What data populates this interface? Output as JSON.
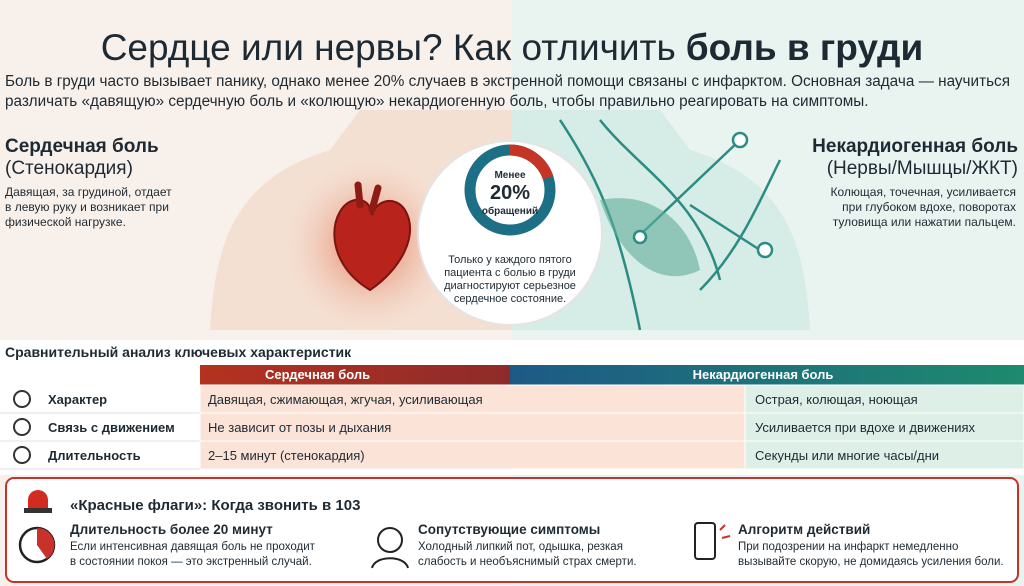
{
  "header": {
    "title_regular": "Сердце или нервы? Как отличить",
    "title_bold": "боль в груди",
    "intro": [
      "Боль в груди часто вызывает панику, однако менее 20% случаев в экстренной помощи связаны с инфарктом. Основная задача — научиться",
      "различать «давящую» сердечную боль и «колющую» некардиогенную боль, чтобы правильно реагировать на симптомы."
    ]
  },
  "left": {
    "title": "Сердечная боль",
    "subtitle": "(Стенокардия)",
    "description": [
      "Давящая, за грудиной, отдает",
      "в левую руку и возникает при",
      "физической нагрузке."
    ]
  },
  "right": {
    "title": "Некардиогенная боль",
    "subtitle": "(Нервы/Мышцы/ЖКТ)",
    "description": [
      "Колющая, точечная, усиливается",
      "при глубоком вдохе, поворотах",
      "туловища или нажатии пальцем."
    ]
  },
  "center": {
    "donut": {
      "top": "Менее",
      "value": 20,
      "label": "20%",
      "bottom": "обращений"
    },
    "caption": [
      "Только у каждого пятого",
      "пациента с болью в груди",
      "диагностируют серьезное",
      "сердечное состояние."
    ]
  },
  "table": {
    "title": "Сравнительный анализ ключевых характеристик",
    "columns": [
      "Сердечная боль",
      "Некардиогенная боль"
    ],
    "rows": [
      [
        "Характер",
        "Давящая, сжимающая, жгучая, усиливающая",
        "Острая, колющая, ноющая"
      ],
      [
        "Связь с движением",
        "Не зависит от позы и дыхания",
        "Усиливается при вдохе и движениях"
      ],
      [
        "Длительность",
        "2–15 минут (стенокардия)",
        "Секунды или многие часы/дни"
      ]
    ]
  },
  "red_flags": {
    "title": "«Красные флаги»: Когда звонить в 103",
    "items": [
      {
        "title": "Длительность более 20 минут",
        "lines": [
          "Если интенсивная давящая боль не проходит",
          "в состоянии покоя — это экстренный случай."
        ]
      },
      {
        "title": "Сопутствующие симптомы",
        "lines": [
          "Холодный липкий пот, одышка, резкая",
          "слабость и необъяснимый страх смерти."
        ]
      },
      {
        "title": "Алгоритм действий",
        "lines": [
          "При подозрении на инфаркт немедленно",
          "вызывайте скорую, не домидаясь усиления боли."
        ]
      }
    ]
  }
}
